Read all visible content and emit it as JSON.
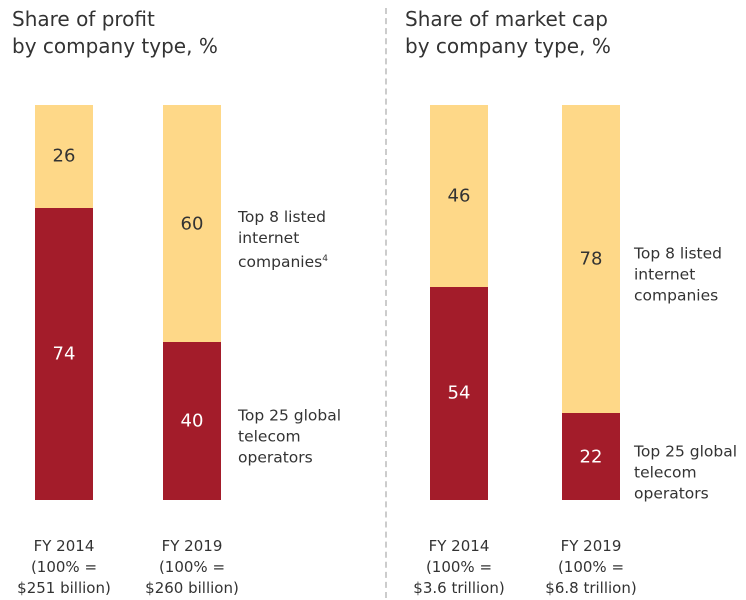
{
  "chart_data": [
    {
      "type": "bar",
      "stacked": true,
      "title": [
        "Share of profit",
        "by company type, %"
      ],
      "categories": [
        [
          "FY 2014",
          "(100% =",
          "$251 billion)"
        ],
        [
          "FY 2019",
          "(100% =",
          "$260 billion)"
        ]
      ],
      "series": [
        {
          "name": "Top 25 global telecom operators",
          "color": "#a31c2a",
          "values": [
            74,
            40
          ]
        },
        {
          "name": "Top 8 listed internet companies",
          "footnote": "4",
          "color": "#fed888",
          "values": [
            26,
            60
          ]
        }
      ],
      "ylim": [
        0,
        100
      ]
    },
    {
      "type": "bar",
      "stacked": true,
      "title": [
        "Share of market cap",
        "by company type, %"
      ],
      "categories": [
        [
          "FY 2014",
          "(100% =",
          "$3.6 trillion)"
        ],
        [
          "FY 2019",
          "(100% =",
          "$6.8 trillion)"
        ]
      ],
      "series": [
        {
          "name": "Top 25 global telecom operators",
          "color": "#a31c2a",
          "values": [
            54,
            22
          ]
        },
        {
          "name": "Top 8 listed internet companies",
          "color": "#fed888",
          "values": [
            46,
            78
          ]
        }
      ],
      "ylim": [
        0,
        100
      ]
    }
  ]
}
